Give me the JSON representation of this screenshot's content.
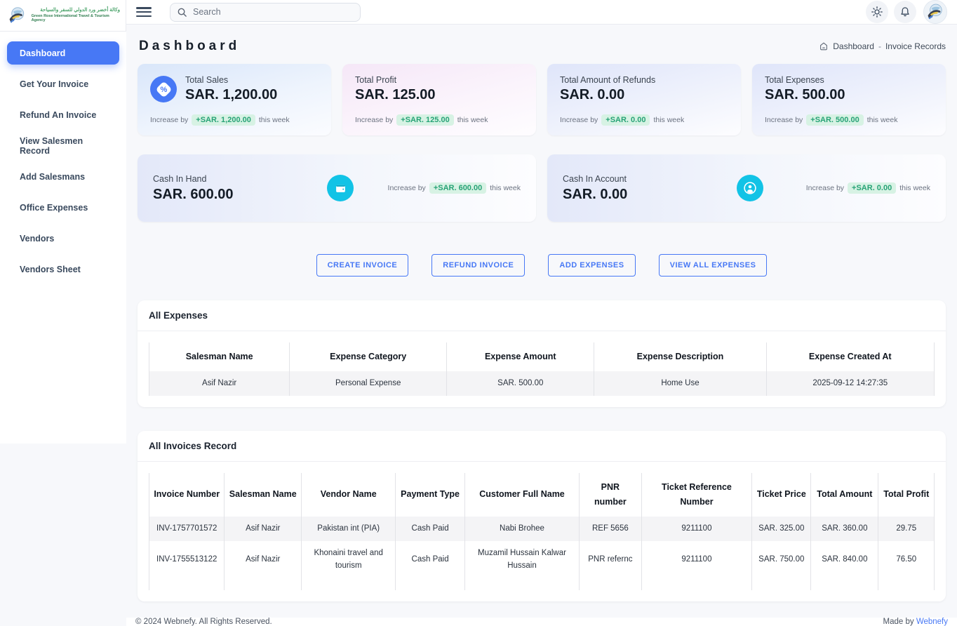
{
  "colors": {
    "accent_blue": "#4778f5",
    "cyan": "#12c3e6",
    "badge_green_text": "#27a376",
    "badge_green_bg": "#d7f2e4"
  },
  "brand": {
    "name_arabic": "وكالة أخضر ورد الدولي للسفر والسياحة",
    "name_english": "Green Rose International Travel & Tourism Agency"
  },
  "topbar": {
    "search_placeholder": "Search"
  },
  "sidebar": {
    "items": [
      {
        "label": "Dashboard"
      },
      {
        "label": "Get Your Invoice"
      },
      {
        "label": "Refund An Invoice"
      },
      {
        "label": "View Salesmen Record"
      },
      {
        "label": "Add Salesmans"
      },
      {
        "label": "Office Expenses"
      },
      {
        "label": "Vendors"
      },
      {
        "label": "Vendors Sheet"
      }
    ]
  },
  "page": {
    "title": "Dashboard",
    "breadcrumb_home": "Dashboard",
    "breadcrumb_sep": "-",
    "breadcrumb_current": "Invoice Records"
  },
  "stats": [
    {
      "title": "Total Sales",
      "value": "SAR. 1,200.00",
      "increase_prefix": "Increase by",
      "increase_badge": "+SAR. 1,200.00",
      "increase_suffix": "this week"
    },
    {
      "title": "Total Profit",
      "value": "SAR. 125.00",
      "increase_prefix": "Increase by",
      "increase_badge": "+SAR. 125.00",
      "increase_suffix": "this week"
    },
    {
      "title": "Total Amount of Refunds",
      "value": "SAR. 0.00",
      "increase_prefix": "Increase by",
      "increase_badge": "+SAR. 0.00",
      "increase_suffix": "this week"
    },
    {
      "title": "Total Expenses",
      "value": "SAR. 500.00",
      "increase_prefix": "Increase by",
      "increase_badge": "+SAR. 500.00",
      "increase_suffix": "this week"
    }
  ],
  "cash_cards": [
    {
      "title": "Cash In Hand",
      "value": "SAR. 600.00",
      "increase_prefix": "Increase by",
      "increase_badge": "+SAR. 600.00",
      "increase_suffix": "this week",
      "icon": "wallet-icon"
    },
    {
      "title": "Cash In Account",
      "value": "SAR. 0.00",
      "increase_prefix": "Increase by",
      "increase_badge": "+SAR. 0.00",
      "increase_suffix": "this week",
      "icon": "user-icon"
    }
  ],
  "actions": [
    "CREATE INVOICE",
    "REFUND INVOICE",
    "ADD EXPENSES",
    "VIEW ALL EXPENSES"
  ],
  "expenses_table": {
    "title": "All Expenses",
    "headers": [
      "Salesman Name",
      "Expense Category",
      "Expense Amount",
      "Expense Description",
      "Expense Created At"
    ],
    "rows": [
      [
        "Asif Nazir",
        "Personal Expense",
        "SAR. 500.00",
        "Home Use",
        "2025-09-12 14:27:35"
      ]
    ]
  },
  "invoices_table": {
    "title": "All Invoices Record",
    "headers": [
      "Invoice Number",
      "Salesman Name",
      "Vendor Name",
      "Payment Type",
      "Customer Full Name",
      "PNR number",
      "Ticket Reference Number",
      "Ticket Price",
      "Total Amount",
      "Total Profit"
    ],
    "rows": [
      [
        "INV-1757701572",
        "Asif Nazir",
        "Pakistan int (PIA)",
        "Cash Paid",
        "Nabi Brohee",
        "REF 5656",
        "9211100",
        "SAR. 325.00",
        "SAR. 360.00",
        "29.75"
      ],
      [
        "INV-1755513122",
        "Asif Nazir",
        "Khonaini travel and tourism",
        "Cash Paid",
        "Muzamil Hussain Kalwar Hussain",
        "PNR refernc",
        "9211100",
        "SAR. 750.00",
        "SAR. 840.00",
        "76.50"
      ]
    ]
  },
  "footer": {
    "left": "© 2024 Webnefy. All Rights Reserved.",
    "right_prefix": "Made by",
    "right_link": "Webnefy"
  }
}
